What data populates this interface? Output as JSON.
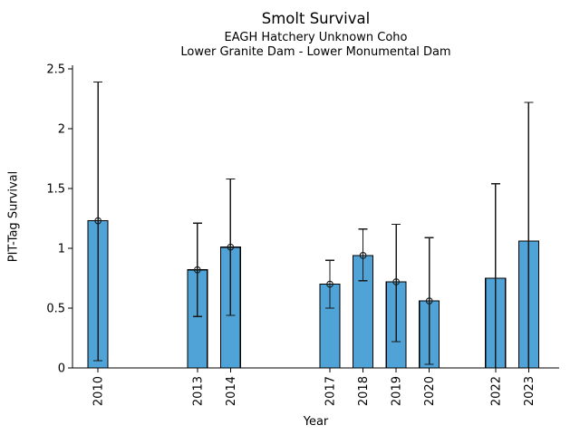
{
  "chart_data": {
    "type": "bar",
    "title": "Smolt Survival",
    "subtitle1": "EAGH Hatchery Unknown Coho",
    "subtitle2": "Lower Granite Dam - Lower Monumental Dam",
    "xlabel": "Year",
    "ylabel": "PIT-Tag Survival",
    "categories": [
      "2010",
      "2013",
      "2014",
      "2017",
      "2018",
      "2019",
      "2020",
      "2022",
      "2023"
    ],
    "x_numeric": [
      2010,
      2013,
      2014,
      2017,
      2018,
      2019,
      2020,
      2022,
      2023
    ],
    "values": [
      1.23,
      0.82,
      1.01,
      0.7,
      0.94,
      0.72,
      0.56,
      0.75,
      1.06
    ],
    "error_low": [
      0.06,
      0.43,
      0.44,
      0.5,
      0.73,
      0.22,
      0.03,
      0.0,
      0.0
    ],
    "error_high": [
      2.39,
      1.21,
      1.58,
      0.9,
      1.16,
      1.2,
      1.09,
      1.54,
      2.22
    ],
    "markers": [
      true,
      true,
      true,
      true,
      true,
      true,
      true,
      false,
      false
    ],
    "ylim": [
      0,
      2.53
    ],
    "xlim": [
      2009.23,
      2023.92
    ],
    "yticks": [
      0,
      0.5,
      1,
      1.5,
      2,
      2.5
    ],
    "ytick_labels": [
      "0",
      "0.5",
      "1",
      "1.5",
      "2",
      "2.5"
    ],
    "bar_width_years": 0.6,
    "bar_color": "#4fa3d6",
    "edge_color": "#000000",
    "error_color": "#1a1a1a",
    "grid": false,
    "legend": "none",
    "x_tick_rotation_deg": 90
  }
}
